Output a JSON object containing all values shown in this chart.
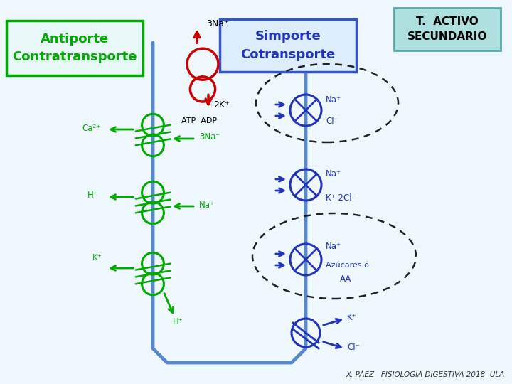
{
  "bg_color": "#f0f8ff",
  "footer_text": "X. PÁEZ   FISIOLOGÍA DIGESTIVA 2018  ULA",
  "title_box": {
    "text": "T.  ACTIVO\nSECUNDARIO",
    "fc": "#aee0e0",
    "ec": "#55aaaa"
  },
  "antiporte_box": {
    "text": "Antiporte\nContratransporte",
    "fc": "#e8f8f8",
    "ec": "#00aa00"
  },
  "simporte_box": {
    "text": "Simporte\nCotransporte",
    "fc": "#ddeeff",
    "ec": "#3355cc"
  },
  "green": "#00aa00",
  "blue": "#2233bb",
  "red": "#cc0000",
  "membrane_color": "#5588cc"
}
